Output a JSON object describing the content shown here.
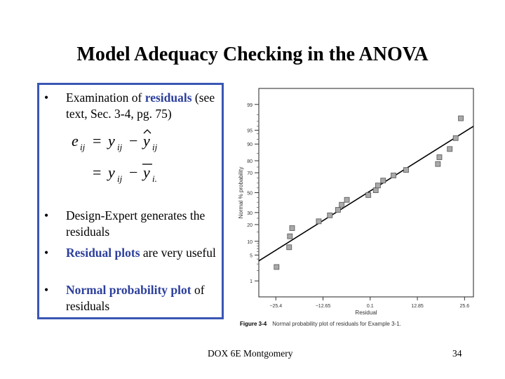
{
  "slide": {
    "title": "Model Adequacy Checking in the ANOVA",
    "bullets": [
      {
        "plain_before": "Examination of ",
        "highlight": "residuals",
        "plain_after": " (see text, Sec. 3-4, pg. 75)"
      },
      {
        "plain_before": "Design-Expert generates the residuals",
        "highlight": "",
        "plain_after": ""
      },
      {
        "plain_before": "",
        "highlight": "Residual plots",
        "plain_after": " are very useful"
      },
      {
        "plain_before": "",
        "highlight": "Normal probability plot",
        "plain_after": " of residuals"
      }
    ],
    "bullet_symbol": "•",
    "footer": "DOX 6E Montgomery",
    "page_number": "34"
  },
  "chart_data": {
    "type": "scatter",
    "title": "",
    "xlabel": "Residual",
    "ylabel": "Normal % probability",
    "caption_label": "Figure 3-4",
    "caption_text": "Normal probability plot of residuals for Example 3-1.",
    "x_ticks": [
      -25.4,
      -12.65,
      0.1,
      12.85,
      25.6
    ],
    "x_tick_labels": [
      "−25.4",
      "−12.65",
      "0.1",
      "12.85",
      "25.6"
    ],
    "y_ticks": [
      1,
      5,
      10,
      20,
      30,
      50,
      70,
      80,
      90,
      95,
      99
    ],
    "y_tick_labels": [
      "1",
      "5",
      "10",
      "20",
      "30",
      "50",
      "70",
      "80",
      "90",
      "95",
      "99"
    ],
    "xlim": [
      -30,
      28
    ],
    "ylim": [
      0.3,
      99.7
    ],
    "y_scale": "normal-probability",
    "points": [
      {
        "x": -25.2,
        "y": 2.5
      },
      {
        "x": -21.8,
        "y": 7.5
      },
      {
        "x": -21.6,
        "y": 12.5
      },
      {
        "x": -21.0,
        "y": 17.5
      },
      {
        "x": -13.8,
        "y": 22.5
      },
      {
        "x": -10.8,
        "y": 27.5
      },
      {
        "x": -8.6,
        "y": 32.5
      },
      {
        "x": -7.6,
        "y": 37.5
      },
      {
        "x": -6.2,
        "y": 42.5
      },
      {
        "x": -0.4,
        "y": 47.5
      },
      {
        "x": 1.6,
        "y": 52.5
      },
      {
        "x": 2.2,
        "y": 57.5
      },
      {
        "x": 3.6,
        "y": 62.5
      },
      {
        "x": 6.4,
        "y": 67.5
      },
      {
        "x": 9.8,
        "y": 72.5
      },
      {
        "x": 18.4,
        "y": 77.5
      },
      {
        "x": 18.8,
        "y": 82.5
      },
      {
        "x": 21.6,
        "y": 87.5
      },
      {
        "x": 23.2,
        "y": 92.5
      },
      {
        "x": 24.6,
        "y": 97.5
      }
    ],
    "fit_line": [
      {
        "x": -30,
        "y": 3.6
      },
      {
        "x": 28,
        "y": 96.0
      }
    ],
    "grid": false,
    "legend": "none"
  },
  "equation": {
    "lhs": "e",
    "lhs_sub": "ij",
    "eq": "=",
    "y1": "y",
    "y1_sub": "ij",
    "minus": "−",
    "yhat": "y",
    "yhat_sub": "ij",
    "y2": "y",
    "y2_sub": "ij",
    "ybar": "y",
    "ybar_sub": "i."
  },
  "colors": {
    "accent": "#2c3f9c",
    "box_border": "#3a56b5",
    "marker_fill": "#a9a9a9",
    "marker_edge": "#555555"
  }
}
